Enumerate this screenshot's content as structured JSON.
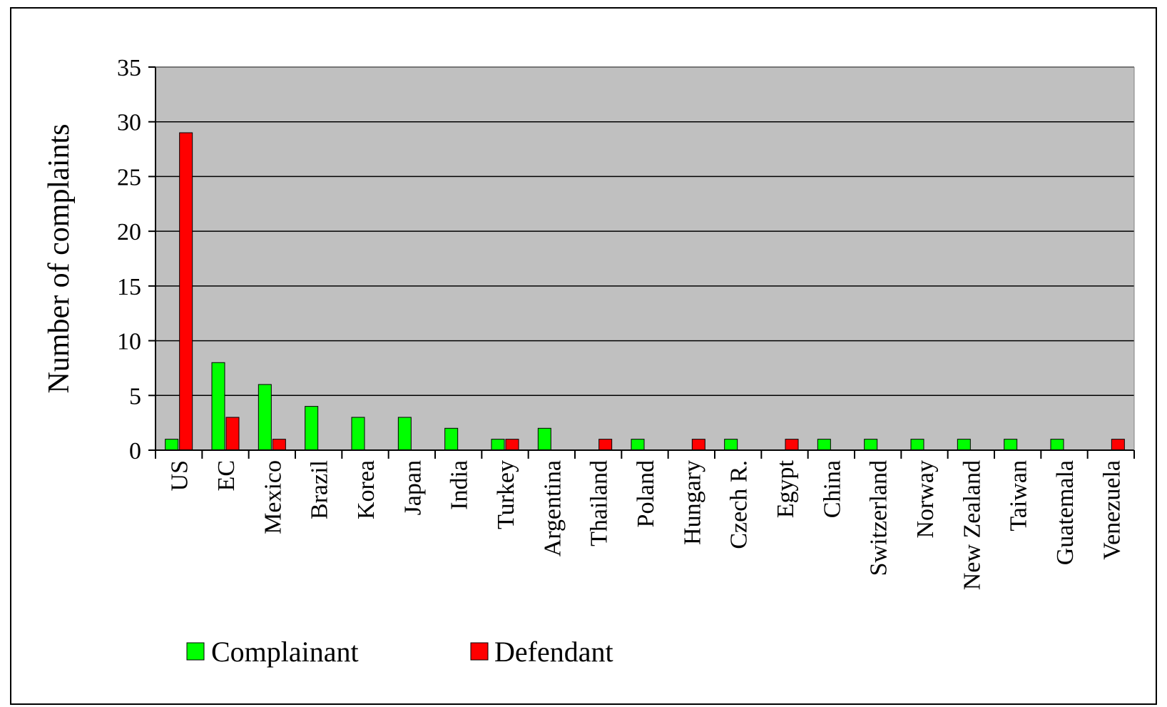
{
  "chart_data": {
    "type": "bar",
    "title": "",
    "xlabel": "",
    "ylabel": "Number of complaints",
    "ylim": [
      0,
      35
    ],
    "yticks": [
      0,
      5,
      10,
      15,
      20,
      25,
      30,
      35
    ],
    "grid": true,
    "legend_position": "bottom-left",
    "categories": [
      "US",
      "EC",
      "Mexico",
      "Brazil",
      "Korea",
      "Japan",
      "India",
      "Turkey",
      "Argentina",
      "Thailand",
      "Poland",
      "Hungary",
      "Czech R.",
      "Egypt",
      "China",
      "Switzerland",
      "Norway",
      "New Zealand",
      "Taiwan",
      "Guatemala",
      "Venezuela"
    ],
    "series": [
      {
        "name": "Complainant",
        "color": "#00ff00",
        "values": [
          1,
          8,
          6,
          4,
          3,
          3,
          2,
          1,
          2,
          0,
          1,
          0,
          1,
          0,
          1,
          1,
          1,
          1,
          1,
          1,
          0
        ]
      },
      {
        "name": "Defendant",
        "color": "#ff0000",
        "values": [
          29,
          3,
          1,
          0,
          0,
          0,
          0,
          1,
          0,
          1,
          0,
          1,
          0,
          1,
          0,
          0,
          0,
          0,
          0,
          0,
          1
        ]
      }
    ],
    "colors": {
      "plot_background": "#c0c0c0",
      "gridline": "#000000"
    }
  }
}
